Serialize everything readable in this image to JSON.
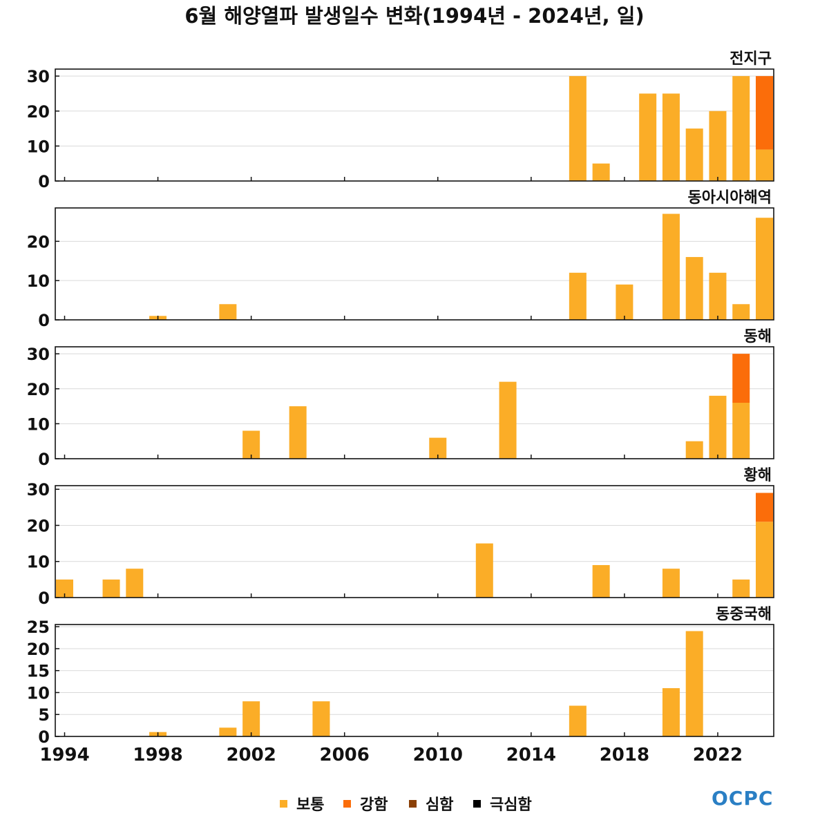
{
  "title": "6월 해양열파 발생일수 변화(1994년 - 2024년, 일)",
  "logo": "OCPC",
  "colors": {
    "보통": "#fbad27",
    "강함": "#fb6d0a",
    "심함": "#8b4006",
    "극심함": "#000000"
  },
  "legend": [
    {
      "key": "보통",
      "label": "보통"
    },
    {
      "key": "강함",
      "label": "강함"
    },
    {
      "key": "심함",
      "label": "심함"
    },
    {
      "key": "극심함",
      "label": "극심함"
    }
  ],
  "chart_data": [
    {
      "type": "bar",
      "stacked": true,
      "label": "전지구",
      "ylim": [
        0,
        32
      ],
      "yticks": [
        0,
        10,
        20,
        30
      ],
      "xlim": [
        1993.6,
        2024.4
      ],
      "xticks": [
        1994,
        1998,
        2002,
        2006,
        2010,
        2014,
        2018,
        2022
      ],
      "x": [
        2016,
        2017,
        2019,
        2020,
        2021,
        2022,
        2023,
        2024
      ],
      "series": [
        {
          "name": "보통",
          "values": [
            30,
            5,
            25,
            25,
            15,
            20,
            30,
            9
          ]
        },
        {
          "name": "강함",
          "values": [
            0,
            0,
            0,
            0,
            0,
            0,
            0,
            21
          ]
        }
      ]
    },
    {
      "type": "bar",
      "stacked": true,
      "label": "동아시아해역",
      "ylim": [
        0,
        28.5
      ],
      "yticks": [
        0,
        10,
        20
      ],
      "xlim": [
        1993.6,
        2024.4
      ],
      "xticks": [
        1994,
        1998,
        2002,
        2006,
        2010,
        2014,
        2018,
        2022
      ],
      "x": [
        1998,
        2001,
        2016,
        2018,
        2020,
        2021,
        2022,
        2023,
        2024
      ],
      "series": [
        {
          "name": "보통",
          "values": [
            1,
            4,
            12,
            9,
            27,
            16,
            12,
            4,
            26
          ]
        }
      ]
    },
    {
      "type": "bar",
      "stacked": true,
      "label": "동해",
      "ylim": [
        0,
        32
      ],
      "yticks": [
        0,
        10,
        20,
        30
      ],
      "xlim": [
        1993.6,
        2024.4
      ],
      "xticks": [
        1994,
        1998,
        2002,
        2006,
        2010,
        2014,
        2018,
        2022
      ],
      "x": [
        2002,
        2004,
        2010,
        2013,
        2021,
        2022,
        2023
      ],
      "series": [
        {
          "name": "보통",
          "values": [
            8,
            15,
            6,
            22,
            5,
            18,
            16
          ]
        },
        {
          "name": "강함",
          "values": [
            0,
            0,
            0,
            0,
            0,
            0,
            14
          ]
        }
      ]
    },
    {
      "type": "bar",
      "stacked": true,
      "label": "황해",
      "ylim": [
        0,
        31
      ],
      "yticks": [
        0,
        10,
        20,
        30
      ],
      "xlim": [
        1993.6,
        2024.4
      ],
      "xticks": [
        1994,
        1998,
        2002,
        2006,
        2010,
        2014,
        2018,
        2022
      ],
      "x": [
        1994,
        1996,
        1997,
        2012,
        2017,
        2020,
        2023,
        2024
      ],
      "series": [
        {
          "name": "보통",
          "values": [
            5,
            5,
            8,
            15,
            9,
            8,
            5,
            21
          ]
        },
        {
          "name": "강함",
          "values": [
            0,
            0,
            0,
            0,
            0,
            0,
            0,
            8
          ]
        }
      ]
    },
    {
      "type": "bar",
      "stacked": true,
      "label": "동중국해",
      "ylim": [
        0,
        25.5
      ],
      "yticks": [
        0,
        5,
        10,
        15,
        20,
        25
      ],
      "xlim": [
        1993.6,
        2024.4
      ],
      "xticks": [
        1994,
        1998,
        2002,
        2006,
        2010,
        2014,
        2018,
        2022
      ],
      "x": [
        1998,
        2001,
        2002,
        2005,
        2016,
        2020,
        2021
      ],
      "series": [
        {
          "name": "보통",
          "values": [
            1,
            2,
            8,
            8,
            7,
            11,
            24
          ]
        }
      ]
    }
  ]
}
